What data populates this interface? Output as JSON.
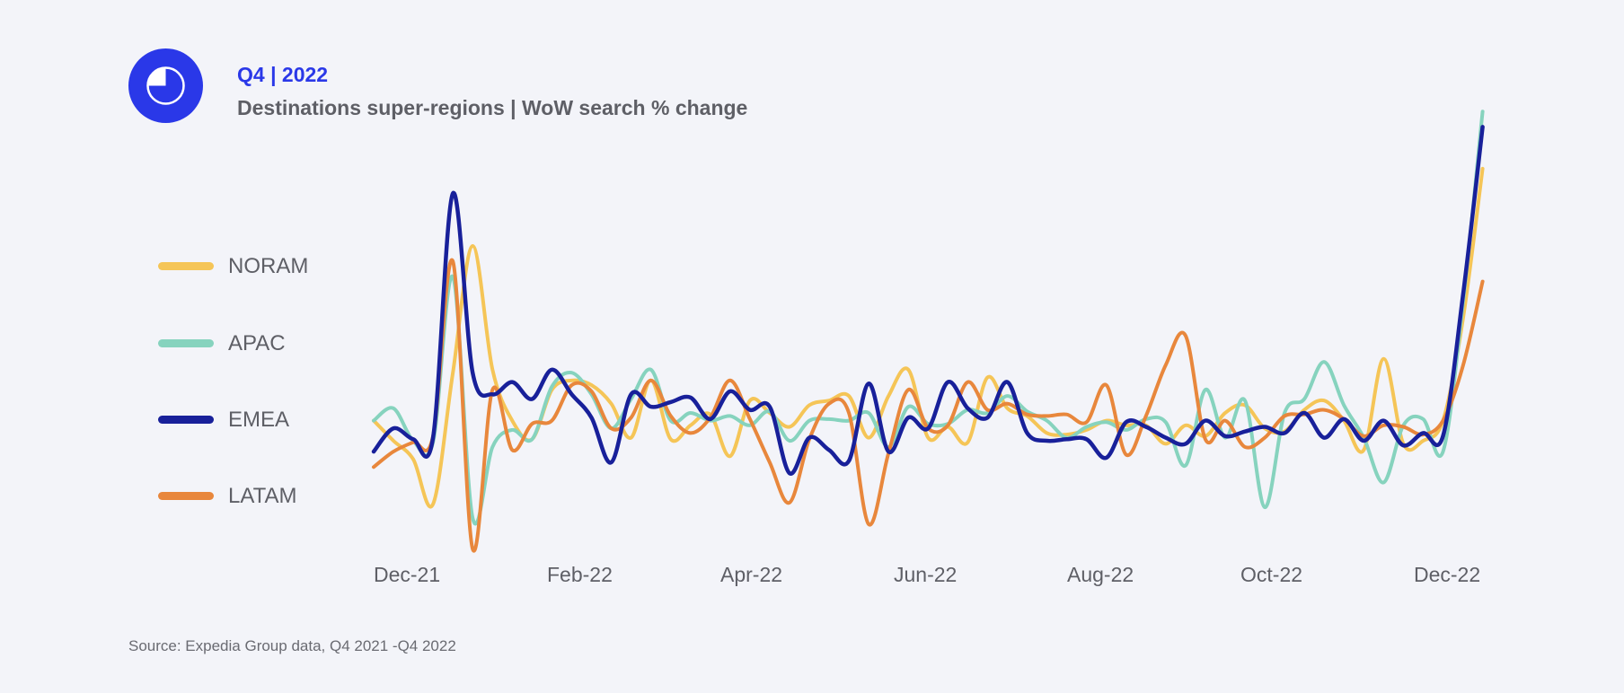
{
  "header": {
    "kicker": "Q4 | 2022",
    "title": "Destinations super-regions | WoW search % change"
  },
  "source": "Source: Expedia Group data, Q4 2021 -Q4 2022",
  "colors": {
    "brand": "#2a38e8",
    "background": "#f3f4f9",
    "text": "#5e5f66"
  },
  "chart_data": {
    "type": "line",
    "title": "Destinations super-regions | WoW search % change",
    "xlabel": "",
    "ylabel": "",
    "x_tick_labels": [
      "Dec-21",
      "Feb-22",
      "Apr-22",
      "Jun-22",
      "Aug-22",
      "Oct-22",
      "Dec-22"
    ],
    "x_range": [
      "2021-12-01",
      "2022-12-31"
    ],
    "y_axis": "no labeled y axis",
    "ylim": [
      -0.8,
      1.9
    ],
    "grid": false,
    "legend_position": "left",
    "x": [
      "2021-12-01",
      "2021-12-08",
      "2021-12-15",
      "2021-12-22",
      "2021-12-29",
      "2022-01-05",
      "2022-01-12",
      "2022-01-19",
      "2022-01-26",
      "2022-02-02",
      "2022-02-09",
      "2022-02-16",
      "2022-02-23",
      "2022-03-02",
      "2022-03-09",
      "2022-03-16",
      "2022-03-23",
      "2022-03-30",
      "2022-04-06",
      "2022-04-13",
      "2022-04-20",
      "2022-04-27",
      "2022-05-04",
      "2022-05-11",
      "2022-05-18",
      "2022-05-25",
      "2022-06-01",
      "2022-06-08",
      "2022-06-15",
      "2022-06-22",
      "2022-06-29",
      "2022-07-06",
      "2022-07-13",
      "2022-07-20",
      "2022-07-27",
      "2022-08-03",
      "2022-08-10",
      "2022-08-17",
      "2022-08-24",
      "2022-08-31",
      "2022-09-07",
      "2022-09-14",
      "2022-09-21",
      "2022-09-28",
      "2022-10-05",
      "2022-10-12",
      "2022-10-19",
      "2022-10-26",
      "2022-11-02",
      "2022-11-09",
      "2022-11-16",
      "2022-11-23",
      "2022-11-30",
      "2022-12-07",
      "2022-12-14",
      "2022-12-21",
      "2022-12-28"
    ],
    "series": [
      {
        "name": "NORAM",
        "color": "#f5c557",
        "values": [
          0.05,
          -0.08,
          -0.2,
          -0.49,
          0.36,
          1.18,
          0.38,
          0.05,
          -0.07,
          0.25,
          0.31,
          0.28,
          0.16,
          -0.06,
          0.31,
          -0.07,
          0.02,
          0.09,
          -0.18,
          0.18,
          0.1,
          0.01,
          0.15,
          0.18,
          0.21,
          -0.06,
          0.21,
          0.38,
          -0.06,
          0.01,
          -0.09,
          0.33,
          0.13,
          0.08,
          -0.03,
          -0.04,
          -0.01,
          0.05,
          0.02,
          0.02,
          -0.1,
          0.02,
          -0.05,
          0.1,
          0.15,
          0.0,
          -0.02,
          0.12,
          0.18,
          0.05,
          -0.14,
          0.45,
          -0.1,
          -0.08,
          0.05,
          0.7,
          1.68
        ]
      },
      {
        "name": "APAC",
        "color": "#86d3be",
        "values": [
          0.05,
          0.13,
          -0.08,
          -0.09,
          0.98,
          -0.58,
          -0.12,
          -0.01,
          -0.07,
          0.27,
          0.36,
          0.22,
          0.0,
          0.19,
          0.38,
          0.05,
          0.1,
          0.05,
          0.08,
          0.02,
          0.11,
          -0.08,
          0.05,
          0.06,
          0.05,
          0.1,
          -0.12,
          0.14,
          0.03,
          0.03,
          0.12,
          0.1,
          0.21,
          0.11,
          0.05,
          -0.06,
          0.01,
          0.04,
          -0.01,
          0.06,
          0.04,
          -0.24,
          0.25,
          -0.06,
          0.18,
          -0.51,
          0.1,
          0.19,
          0.43,
          0.15,
          -0.06,
          -0.35,
          0.02,
          0.06,
          -0.15,
          0.8,
          2.05
        ]
      },
      {
        "name": "EMEA",
        "color": "#18209a",
        "values": [
          -0.15,
          0.0,
          -0.07,
          -0.06,
          1.52,
          0.36,
          0.22,
          0.3,
          0.19,
          0.38,
          0.22,
          0.07,
          -0.22,
          0.22,
          0.14,
          0.17,
          0.2,
          0.06,
          0.24,
          0.12,
          0.14,
          -0.29,
          -0.06,
          -0.14,
          -0.21,
          0.29,
          -0.15,
          0.07,
          0.0,
          0.3,
          0.13,
          0.07,
          0.3,
          -0.03,
          -0.08,
          -0.07,
          -0.07,
          -0.19,
          0.04,
          0.01,
          -0.06,
          -0.1,
          0.05,
          -0.05,
          -0.02,
          0.01,
          -0.03,
          0.1,
          -0.06,
          0.06,
          -0.08,
          0.05,
          -0.11,
          -0.03,
          -0.05,
          0.85,
          1.95
        ]
      },
      {
        "name": "LATAM",
        "color": "#e8873c",
        "values": [
          -0.25,
          -0.15,
          -0.09,
          -0.05,
          1.08,
          -0.78,
          0.25,
          -0.14,
          0.03,
          0.05,
          0.28,
          0.24,
          0.0,
          0.07,
          0.31,
          0.08,
          -0.03,
          0.07,
          0.31,
          0.06,
          -0.22,
          -0.48,
          -0.07,
          0.16,
          0.1,
          -0.62,
          -0.16,
          0.25,
          0.0,
          0.02,
          0.3,
          0.12,
          0.16,
          0.09,
          0.08,
          0.09,
          0.04,
          0.28,
          -0.17,
          0.08,
          0.41,
          0.6,
          -0.07,
          0.05,
          -0.12,
          -0.06,
          0.08,
          0.09,
          0.12,
          0.06,
          -0.05,
          0.02,
          0.01,
          -0.04,
          0.05,
          0.4,
          0.95
        ]
      }
    ]
  }
}
